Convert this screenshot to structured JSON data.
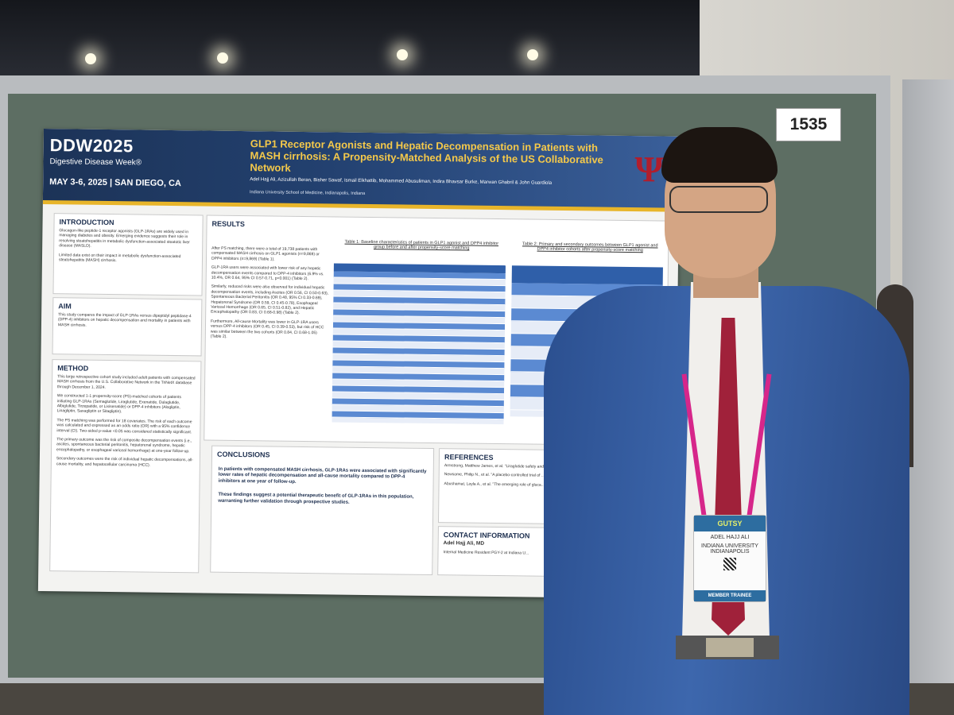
{
  "board_number": "1535",
  "poster": {
    "header": {
      "logo": "DDW2025",
      "logo_sub": "Digestive Disease Week®",
      "date_location": "MAY 3-6, 2025 | SAN DIEGO, CA",
      "title": "GLP1 Receptor Agonists and Hepatic Decompensation in Patients with MASH cirrhosis: A Propensity-Matched Analysis of the US Collaborative Network",
      "authors": "Adel Hajj Ali, Azizullah Beran, Bisher Sawaf, Ismail Elkhattib, Mohammed Abusuliman, Indira Bhavsar Burke, Marwan Ghabril & John Guardiola",
      "affiliation": "Indiana University School of Medicine, Indianapolis, Indiana"
    },
    "introduction": {
      "title": "INTRODUCTION",
      "p1": "Glucagon-like peptide-1 receptor agonists (GLP-1RAs) are widely used in managing diabetes and obesity. Emerging evidence suggests their role in resolving steatohepatitis in metabolic dysfunction-associated steatotic liver disease (MASLD).",
      "p2": "Limited data exist on their impact in metabolic dysfunction-associated steatohepatitis (MASH) cirrhosis."
    },
    "aim": {
      "title": "AIM",
      "text": "This study compares the impact of GLP-1RAs versus dipeptidyl peptidase-4 (DPP-4) inhibitors on hepatic decompensation and mortality in patients with MASH cirrhosis."
    },
    "method": {
      "title": "METHOD",
      "b1": "This large retrospective cohort study included adult patients with compensated MASH cirrhosis from the U.S. Collaborative Network in the TriNetX database through December 1, 2024.",
      "b2": "We constructed 1-1 propensity-score (PS)-matched cohorts of patients initiating GLP-1RAs (Semaglutide, Liraglutide, Exenatide, Dulaglutide, Albiglutide, Tirzepatide, or Lixisenatide) or DPP-4 inhibitors (Alogliptin, Linagliptin, Saxagliptin or Sitagliptin).",
      "b3": "The PS matching was performed for 18 covariates. The risk of each outcome was calculated and expressed as an odds ratio (OR) with a 95% confidence interval (CI). Two-sided p-value <0.05 was considered statistically significant.",
      "b4": "The primary outcome was the risk of composite decompensation events (i.e., ascites, spontaneous bacterial peritonitis, hepatorenal syndrome, hepatic encephalopathy, or esophageal variceal hemorrhage) at one-year follow-up.",
      "b5": "Secondary outcomes were the risk of individual hepatic decompensations, all-cause mortality, and hepatocellular carcinoma (HCC)."
    },
    "results": {
      "title": "RESULTS",
      "p1": "After PS matching, there were a total of 19,738 patients with compensated MASH cirrhosis on GLP1 agonists (n=9,869) or DPP4 inhibitors (n=9,869) (Table 1).",
      "p2": "GLP-1RA users were associated with lower risk of any hepatic decompensation events compared to DPP-4 inhibitors (6.9% vs. 10.4%, OR 0.64, 95% CI 0.57-0.71, p<0.001) (Table 2).",
      "p3": "Similarly, reduced risks were also observed for individual hepatic decompensation events, including Ascites (OR 0.56, CI 0.50-0.63), Spontaneous Bacterial Peritonitis (OR 0.48, 95% CI 0.33-0.69), Hepatorenal Syndrome (OR 0.59, CI 0.45-0.78), Esophageal Variceal Hemorrhage (OR 0.65, CI 0.51-0.82), and Hepatic Encephalopathy (OR 0.83, CI 0.68-0.98) (Table 2).",
      "p4": "Furthermore, All-cause Mortality was lower in GLP-1RA users versus DPP-4 inhibitors (OR 0.45, CI 0.39-0.53), but risk of HCC was similar between the two cohorts (OR 0.84, CI 0.68-1.05) (Table 2).",
      "table1_title": "Table 1: Baseline characteristics of patients in GLP1 agonist and DPP4 inhibitor group before and after propensity-score matching",
      "table2_title": "Table 2: Primary and secondary outcomes between GLP1 agonist and DPP4 inhibitor cohorts after propensity-score matching"
    },
    "conclusions": {
      "title": "CONCLUSIONS",
      "p1": "In patients with compensated MASH cirrhosis, GLP-1RAs were associated with significantly lower rates of hepatic decompensation and all-cause mortality compared to DPP-4 inhibitors at one year of follow-up.",
      "p2": "These findings suggest a potential therapeutic benefit of GLP-1RAs in this population, warranting further validation through prospective studies."
    },
    "references": {
      "title": "REFERENCES",
      "r1": "Armstrong, Matthew James, et al. \"Liraglutide safety and ... a multicentre, double-blind, randomised, placebo-contr...",
      "r2": "Newsome, Philip N., et al. \"A placebo-controlled trial of ... New England Journal of Medicine 384.12 (2021): 1113...",
      "r3": "Abushamat, Layla A., et al. \"The emerging role of gluca... metabolic dysfunction-associated steatohepatitis.\" Cli..."
    },
    "contact": {
      "title": "CONTACT INFORMATION",
      "name": "Adel Hajj Ali, MD",
      "role": "Internal Medicine Resident PGY-2 at Indiana U..."
    }
  },
  "badge": {
    "header": "GUTSY",
    "name": "ADEL HAJJ ALI",
    "org": "INDIANA UNIVERSITY INDIANAPOLIS",
    "footer": "MEMBER TRAINEE"
  }
}
